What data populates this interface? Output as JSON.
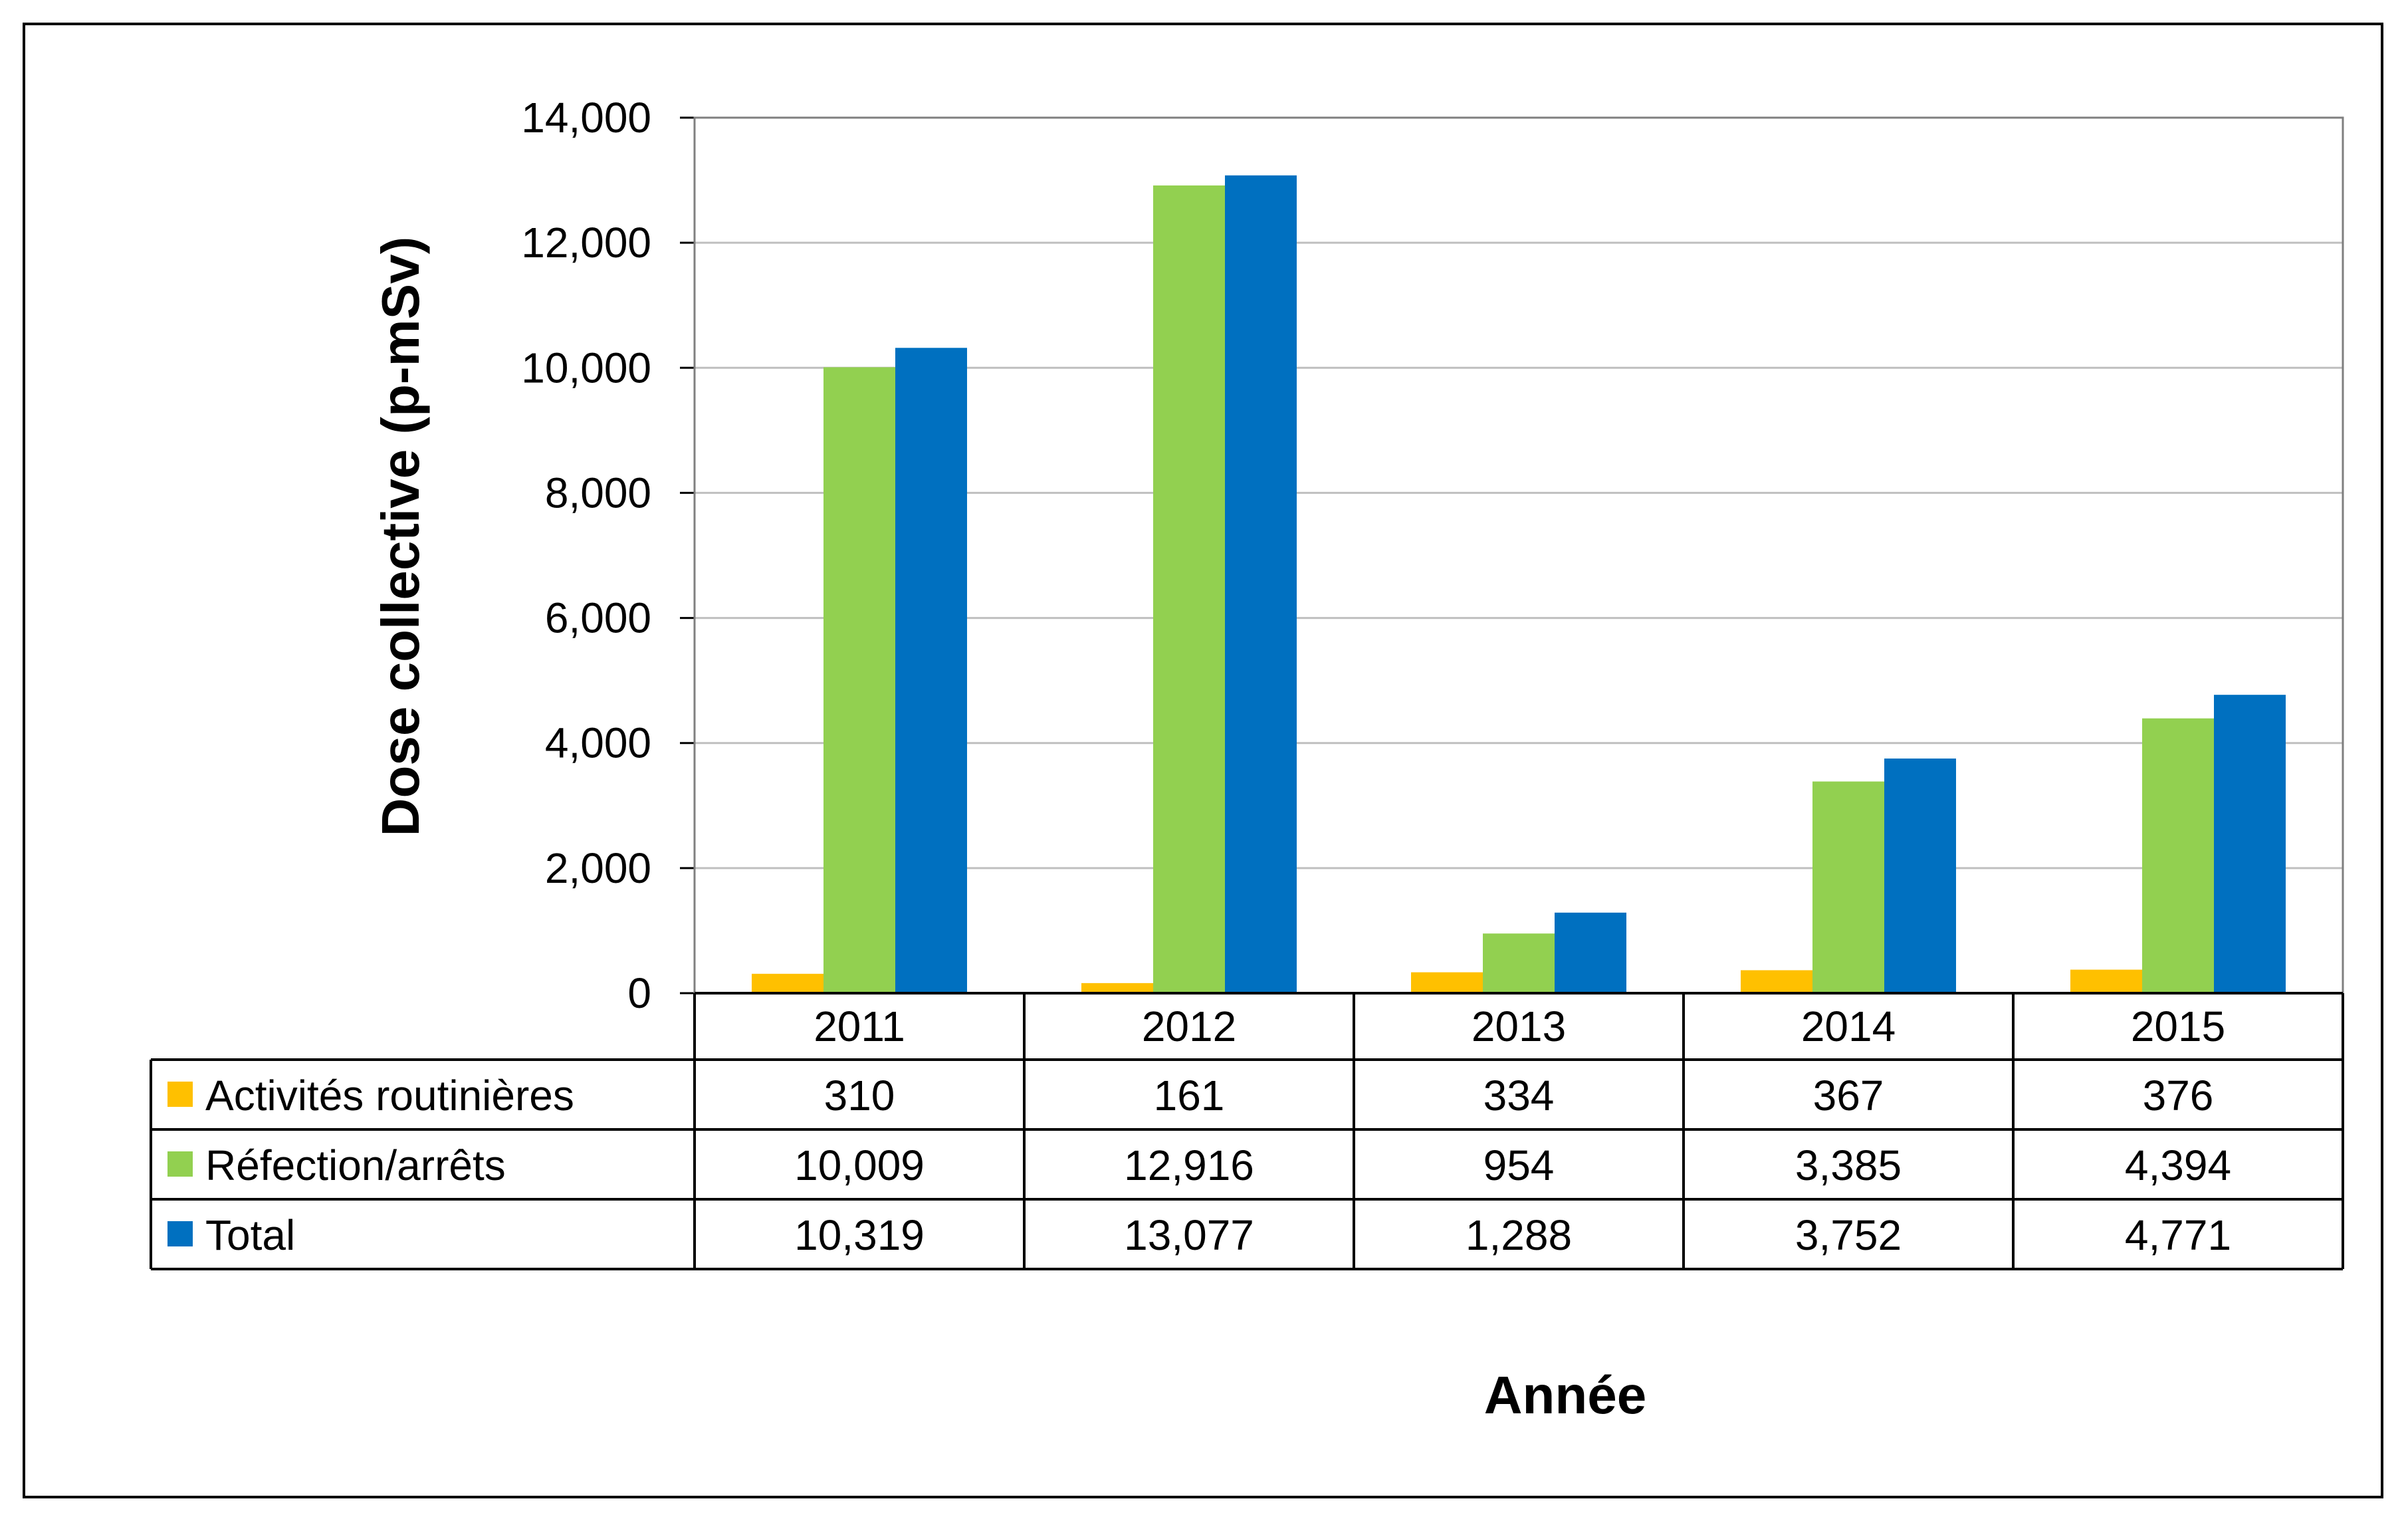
{
  "chart_data": {
    "type": "bar",
    "xlabel": "Année",
    "ylabel": "Dose collective (p-mSv)",
    "ylim": [
      0,
      14000
    ],
    "yticks": [
      "0",
      "2,000",
      "4,000",
      "6,000",
      "8,000",
      "10,000",
      "12,000",
      "14,000"
    ],
    "grid": true,
    "categories": [
      "2011",
      "2012",
      "2013",
      "2014",
      "2015"
    ],
    "series": [
      {
        "name": "Activités routinières",
        "color": "#FFC000",
        "values": [
          310,
          161,
          334,
          367,
          376
        ],
        "labels": [
          "310",
          "161",
          "334",
          "367",
          "376"
        ]
      },
      {
        "name": "Réfection/arrêts",
        "color": "#92D050",
        "values": [
          10009,
          12916,
          954,
          3385,
          4394
        ],
        "labels": [
          "10,009",
          "12,916",
          "954",
          "3,385",
          "4,394"
        ]
      },
      {
        "name": "Total",
        "color": "#0070C0",
        "values": [
          10319,
          13077,
          1288,
          3752,
          4771
        ],
        "labels": [
          "10,319",
          "13,077",
          "1,288",
          "3,752",
          "4,771"
        ]
      }
    ]
  }
}
